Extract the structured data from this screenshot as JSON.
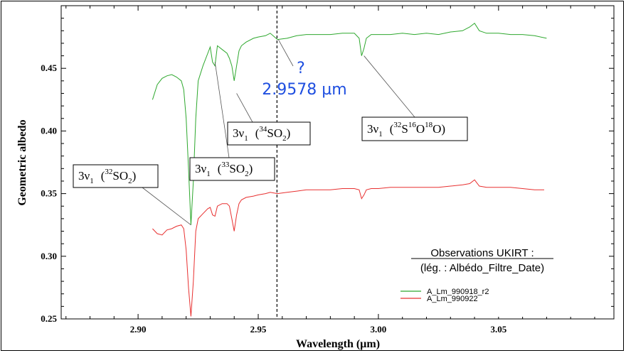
{
  "chart_data": {
    "type": "line",
    "xlabel": "Wavelength (µm)",
    "ylabel": "Geometric albedo",
    "xlim": [
      2.868,
      3.098
    ],
    "ylim": [
      0.25,
      0.5
    ],
    "xticks": [
      "2.90",
      "2.95",
      "3.00",
      "3.05"
    ],
    "yticks": [
      "0.25",
      "0.30",
      "0.35",
      "0.40",
      "0.45"
    ],
    "grid": false,
    "vline_x": 2.9578,
    "series": [
      {
        "name": "A_Lm_990918_r2",
        "color": "#2ea82e",
        "x": [
          2.906,
          2.908,
          2.91,
          2.912,
          2.914,
          2.916,
          2.918,
          2.919,
          2.92,
          2.921,
          2.922,
          2.923,
          2.924,
          2.925,
          2.927,
          2.929,
          2.93,
          2.931,
          2.932,
          2.933,
          2.935,
          2.937,
          2.938,
          2.939,
          2.94,
          2.941,
          2.942,
          2.943,
          2.945,
          2.948,
          2.95,
          2.953,
          2.955,
          2.958,
          2.962,
          2.966,
          2.97,
          2.975,
          2.98,
          2.985,
          2.99,
          2.992,
          2.993,
          2.994,
          2.995,
          2.997,
          3.0,
          3.005,
          3.01,
          3.015,
          3.02,
          3.025,
          3.03,
          3.035,
          3.038,
          3.04,
          3.042,
          3.045,
          3.05,
          3.055,
          3.06,
          3.065,
          3.07
        ],
        "y": [
          0.425,
          0.437,
          0.442,
          0.444,
          0.445,
          0.443,
          0.44,
          0.433,
          0.41,
          0.37,
          0.325,
          0.36,
          0.41,
          0.44,
          0.452,
          0.462,
          0.467,
          0.455,
          0.452,
          0.468,
          0.465,
          0.462,
          0.458,
          0.452,
          0.44,
          0.452,
          0.464,
          0.468,
          0.471,
          0.474,
          0.475,
          0.476,
          0.478,
          0.473,
          0.474,
          0.476,
          0.477,
          0.477,
          0.477,
          0.478,
          0.478,
          0.474,
          0.46,
          0.466,
          0.474,
          0.477,
          0.477,
          0.477,
          0.478,
          0.477,
          0.478,
          0.477,
          0.479,
          0.48,
          0.483,
          0.486,
          0.48,
          0.478,
          0.478,
          0.477,
          0.477,
          0.476,
          0.474
        ]
      },
      {
        "name": "A_Lm_990922",
        "color": "#e83030",
        "x": [
          2.906,
          2.908,
          2.91,
          2.912,
          2.914,
          2.916,
          2.918,
          2.919,
          2.92,
          2.921,
          2.922,
          2.923,
          2.924,
          2.925,
          2.927,
          2.929,
          2.93,
          2.931,
          2.932,
          2.933,
          2.935,
          2.937,
          2.938,
          2.939,
          2.94,
          2.941,
          2.942,
          2.943,
          2.945,
          2.948,
          2.95,
          2.953,
          2.955,
          2.958,
          2.962,
          2.966,
          2.97,
          2.975,
          2.98,
          2.985,
          2.99,
          2.992,
          2.993,
          2.994,
          2.995,
          2.997,
          3.0,
          3.005,
          3.01,
          3.015,
          3.02,
          3.025,
          3.03,
          3.035,
          3.038,
          3.04,
          3.042,
          3.045,
          3.05,
          3.055,
          3.06,
          3.065,
          3.069
        ],
        "y": [
          0.322,
          0.318,
          0.317,
          0.321,
          0.322,
          0.324,
          0.325,
          0.322,
          0.305,
          0.275,
          0.252,
          0.28,
          0.32,
          0.33,
          0.334,
          0.338,
          0.339,
          0.333,
          0.332,
          0.34,
          0.342,
          0.342,
          0.34,
          0.33,
          0.32,
          0.333,
          0.342,
          0.345,
          0.347,
          0.348,
          0.349,
          0.35,
          0.351,
          0.35,
          0.351,
          0.352,
          0.353,
          0.353,
          0.353,
          0.354,
          0.354,
          0.353,
          0.346,
          0.349,
          0.353,
          0.354,
          0.354,
          0.355,
          0.355,
          0.355,
          0.355,
          0.355,
          0.356,
          0.357,
          0.358,
          0.361,
          0.356,
          0.355,
          0.355,
          0.355,
          0.354,
          0.353,
          0.353
        ]
      }
    ],
    "annotations": [
      {
        "id": "so2-32",
        "mode": "3ν",
        "sub_mode": "1",
        "isotope": "32",
        "formula": "SO",
        "formula_sub": "2",
        "pointer_x": 2.922,
        "pointer_y": 0.325
      },
      {
        "id": "so2-33",
        "mode": "3ν",
        "sub_mode": "1",
        "isotope": "33",
        "formula": "SO",
        "formula_sub": "2",
        "pointer_x": 2.932,
        "pointer_y": 0.455
      },
      {
        "id": "so2-34",
        "mode": "3ν",
        "sub_mode": "1",
        "isotope": "34",
        "formula": "SO",
        "formula_sub": "2",
        "pointer_x": 2.941,
        "pointer_y": 0.43
      },
      {
        "id": "s16o18o",
        "mode": "3ν",
        "sub_mode": "1",
        "isotope": "32",
        "formula": "S",
        "iso2": "16",
        "formula2": "O",
        "iso3": "18",
        "formula3": "O",
        "pointer_x": 2.994,
        "pointer_y": 0.46
      }
    ],
    "unknown_line": {
      "question": "?",
      "label": "2.9578 µm",
      "pointer_x": 2.9578,
      "pointer_y": 0.474
    },
    "legend": {
      "title": "Observations UKIRT :",
      "subtitle": "(lég. : Albédo_Filtre_Date)",
      "placement": "bottom-right"
    }
  }
}
